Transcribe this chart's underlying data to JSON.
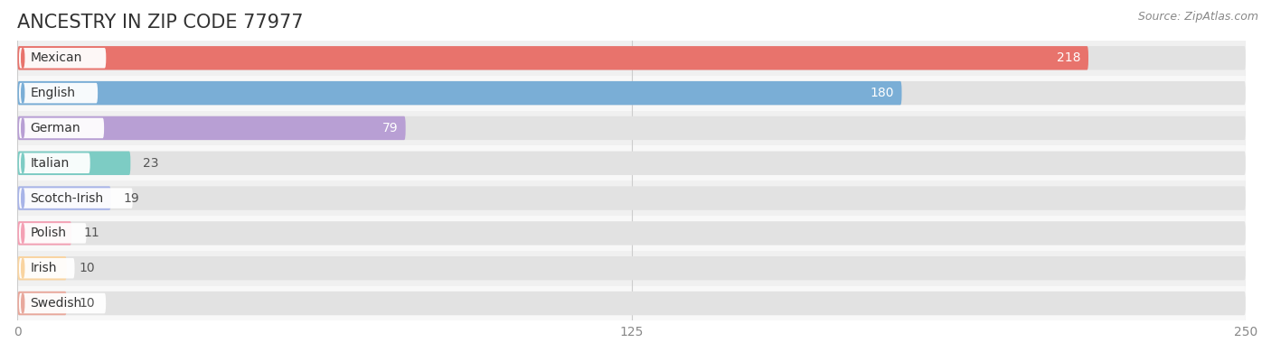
{
  "title": "ANCESTRY IN ZIP CODE 77977",
  "source": "Source: ZipAtlas.com",
  "categories": [
    "Mexican",
    "English",
    "German",
    "Italian",
    "Scotch-Irish",
    "Polish",
    "Irish",
    "Swedish"
  ],
  "values": [
    218,
    180,
    79,
    23,
    19,
    11,
    10,
    10
  ],
  "bar_colors": [
    "#e8736c",
    "#7aaed6",
    "#b89fd4",
    "#7dccc4",
    "#a8b4e8",
    "#f4a0b4",
    "#f9d4a0",
    "#e8a89c"
  ],
  "xlim": [
    0,
    250
  ],
  "xticks": [
    0,
    125,
    250
  ],
  "title_fontsize": 15,
  "source_fontsize": 9,
  "label_fontsize": 10,
  "value_fontsize": 10,
  "bar_height": 0.68,
  "figsize": [
    14.06,
    3.9
  ],
  "dpi": 100,
  "row_colors": [
    "#f0f0f0",
    "#f8f8f8"
  ],
  "bar_bg_color": "#e2e2e2",
  "pill_color": "#ffffff",
  "grid_color": "#cccccc",
  "text_color": "#333333",
  "source_color": "#888888",
  "value_color_inside": "#ffffff",
  "value_color_outside": "#555555"
}
